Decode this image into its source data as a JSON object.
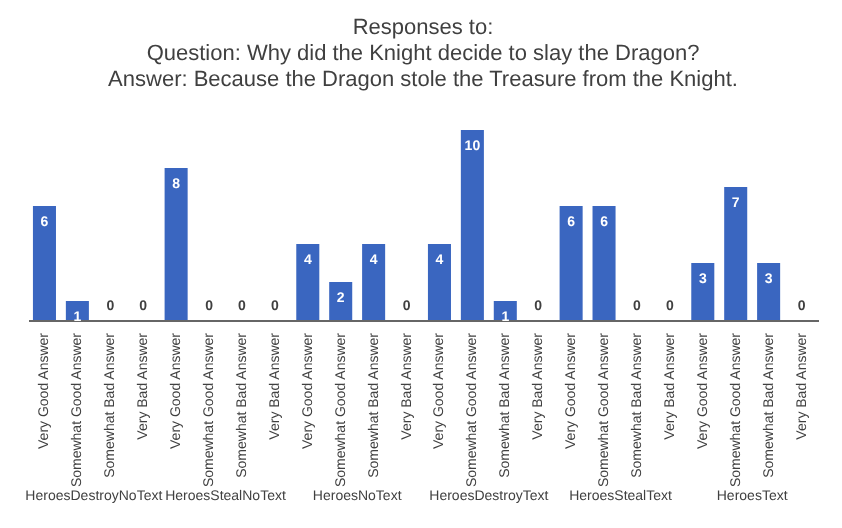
{
  "chart_data": {
    "type": "bar",
    "title": [
      "Responses to:",
      "Question: Why did the Knight decide to slay the Dragon?",
      "Answer: Because the Dragon stole the Treasure from the Knight."
    ],
    "categories": [
      "Very Good Answer",
      "Somewhat Good Answer",
      "Somewhat Bad Answer",
      "Very Bad Answer",
      "Very Good Answer",
      "Somewhat Good Answer",
      "Somewhat Bad Answer",
      "Very Bad Answer",
      "Very Good Answer",
      "Somewhat Good Answer",
      "Somewhat Bad Answer",
      "Very Bad Answer",
      "Very Good Answer",
      "Somewhat Good Answer",
      "Somewhat Bad Answer",
      "Very Bad Answer",
      "Very Good Answer",
      "Somewhat Good Answer",
      "Somewhat Bad Answer",
      "Very Bad Answer",
      "Very Good Answer",
      "Somewhat Good Answer",
      "Somewhat Bad Answer",
      "Very Bad Answer"
    ],
    "values": [
      6,
      1,
      0,
      0,
      8,
      0,
      0,
      0,
      4,
      2,
      4,
      0,
      4,
      10,
      1,
      0,
      6,
      6,
      0,
      0,
      3,
      7,
      3,
      0
    ],
    "color": "#3a66c0",
    "data_labels": true,
    "annotations": [
      "HeroesDestroyNoText",
      "HeroesStealNoText",
      "HeroesNoText",
      "HeroesDestroyText",
      "HeroesStealText",
      "HeroesText"
    ]
  }
}
